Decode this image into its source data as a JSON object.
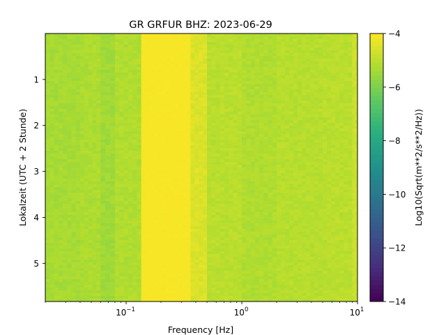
{
  "chart_data": {
    "type": "heatmap",
    "title": "GR GRFUR  BHZ: 2023-06-29",
    "xlabel": "Frequency [Hz]",
    "ylabel": "Lokalzeit (UTC + 2 Stunde)",
    "colorbar_label": "Log10(Sqrt(m**2/s**2/Hz))",
    "colormap": "viridis",
    "x_scale": "log",
    "xlim": [
      0.02,
      10
    ],
    "ylim": [
      5.83,
      0
    ],
    "y_inverted": true,
    "clim": [
      -14,
      -4
    ],
    "x_ticks": [
      {
        "base": "10",
        "exp": "−1",
        "value": 0.1
      },
      {
        "base": "10",
        "exp": "0",
        "value": 1
      },
      {
        "base": "10",
        "exp": "1",
        "value": 10
      }
    ],
    "y_ticks": [
      {
        "label": "1",
        "value": 1
      },
      {
        "label": "2",
        "value": 2
      },
      {
        "label": "3",
        "value": 3
      },
      {
        "label": "4",
        "value": 4
      },
      {
        "label": "5",
        "value": 5
      }
    ],
    "colorbar_ticks": [
      {
        "label": "−4",
        "value": -4
      },
      {
        "label": "−6",
        "value": -6
      },
      {
        "label": "−8",
        "value": -8
      },
      {
        "label": "−10",
        "value": -10
      },
      {
        "label": "−12",
        "value": -12
      },
      {
        "label": "−14",
        "value": -14
      }
    ],
    "frequency_bands": [
      {
        "from": 0.02,
        "to": 0.04,
        "level": -5.35
      },
      {
        "from": 0.04,
        "to": 0.06,
        "level": -5.25
      },
      {
        "from": 0.06,
        "to": 0.08,
        "level": -5.45
      },
      {
        "from": 0.08,
        "to": 0.135,
        "level": -5.2
      },
      {
        "from": 0.135,
        "to": 0.36,
        "level": -4.1
      },
      {
        "from": 0.36,
        "to": 0.5,
        "level": -4.55
      },
      {
        "from": 0.5,
        "to": 1.0,
        "level": -5.05
      },
      {
        "from": 1.0,
        "to": 2.0,
        "level": -5.2
      },
      {
        "from": 2.0,
        "to": 5.0,
        "level": -5.1
      },
      {
        "from": 5.0,
        "to": 9.0,
        "level": -5.05
      },
      {
        "from": 9.0,
        "to": 10.0,
        "level": -4.8
      }
    ],
    "grid": false
  }
}
